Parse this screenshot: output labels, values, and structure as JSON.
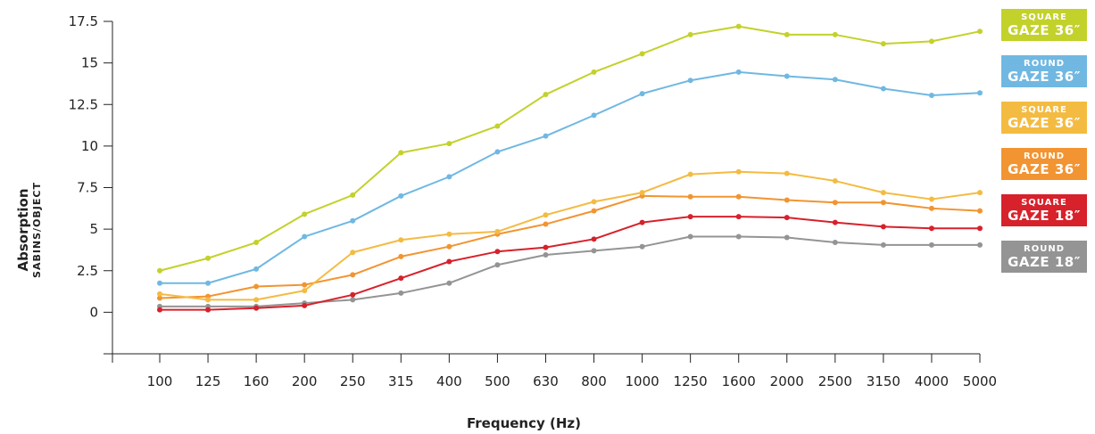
{
  "chart_data": {
    "type": "line",
    "xlabel": "Frequency (Hz)",
    "ylabel": "Absorption",
    "ylabel_sub": "SABINS/OBJECT",
    "categories": [
      "100",
      "125",
      "160",
      "200",
      "250",
      "315",
      "400",
      "500",
      "630",
      "800",
      "1000",
      "1250",
      "1600",
      "2000",
      "2500",
      "3150",
      "4000",
      "5000"
    ],
    "y_ticks": [
      "0",
      "2.5",
      "5",
      "7.5",
      "10",
      "12.5",
      "15",
      "17.5"
    ],
    "ylim": [
      -2.5,
      17.5
    ],
    "grid": false,
    "legend_position": "right",
    "series": [
      {
        "shape": "SQUARE",
        "size": "GAZE 36″",
        "color": "#c3d12b",
        "values": [
          2.5,
          3.25,
          4.2,
          5.9,
          7.05,
          9.6,
          10.15,
          11.2,
          13.1,
          14.45,
          15.55,
          16.7,
          17.2,
          16.7,
          16.7,
          16.15,
          16.3,
          16.9
        ]
      },
      {
        "shape": "ROUND",
        "size": "GAZE 36″",
        "color": "#70b8e2",
        "values": [
          1.75,
          1.75,
          2.6,
          4.55,
          5.5,
          7.0,
          8.15,
          9.65,
          10.6,
          11.85,
          13.15,
          13.95,
          14.45,
          14.2,
          14.0,
          13.45,
          13.05,
          13.2
        ]
      },
      {
        "shape": "SQUARE",
        "size": "GAZE 36″",
        "color": "#f4bb42",
        "values": [
          1.1,
          0.75,
          0.75,
          1.3,
          3.6,
          4.35,
          4.7,
          4.85,
          5.85,
          6.65,
          7.2,
          8.3,
          8.45,
          8.35,
          7.9,
          7.2,
          6.8,
          7.2
        ]
      },
      {
        "shape": "ROUND",
        "size": "GAZE 36″",
        "color": "#f29431",
        "values": [
          0.85,
          0.95,
          1.55,
          1.65,
          2.25,
          3.35,
          3.95,
          4.7,
          5.3,
          6.1,
          7.0,
          6.95,
          6.95,
          6.75,
          6.6,
          6.6,
          6.25,
          6.1
        ]
      },
      {
        "shape": "SQUARE",
        "size": "GAZE 18″",
        "color": "#d7212b",
        "values": [
          0.15,
          0.15,
          0.25,
          0.4,
          1.05,
          2.05,
          3.05,
          3.65,
          3.9,
          4.4,
          5.4,
          5.75,
          5.75,
          5.7,
          5.4,
          5.15,
          5.05,
          5.05
        ]
      },
      {
        "shape": "ROUND",
        "size": "GAZE 18″",
        "color": "#949494",
        "values": [
          0.35,
          0.35,
          0.35,
          0.55,
          0.75,
          1.15,
          1.75,
          2.85,
          3.45,
          3.7,
          3.95,
          4.55,
          4.55,
          4.5,
          4.2,
          4.05,
          4.05,
          4.05
        ]
      }
    ]
  }
}
